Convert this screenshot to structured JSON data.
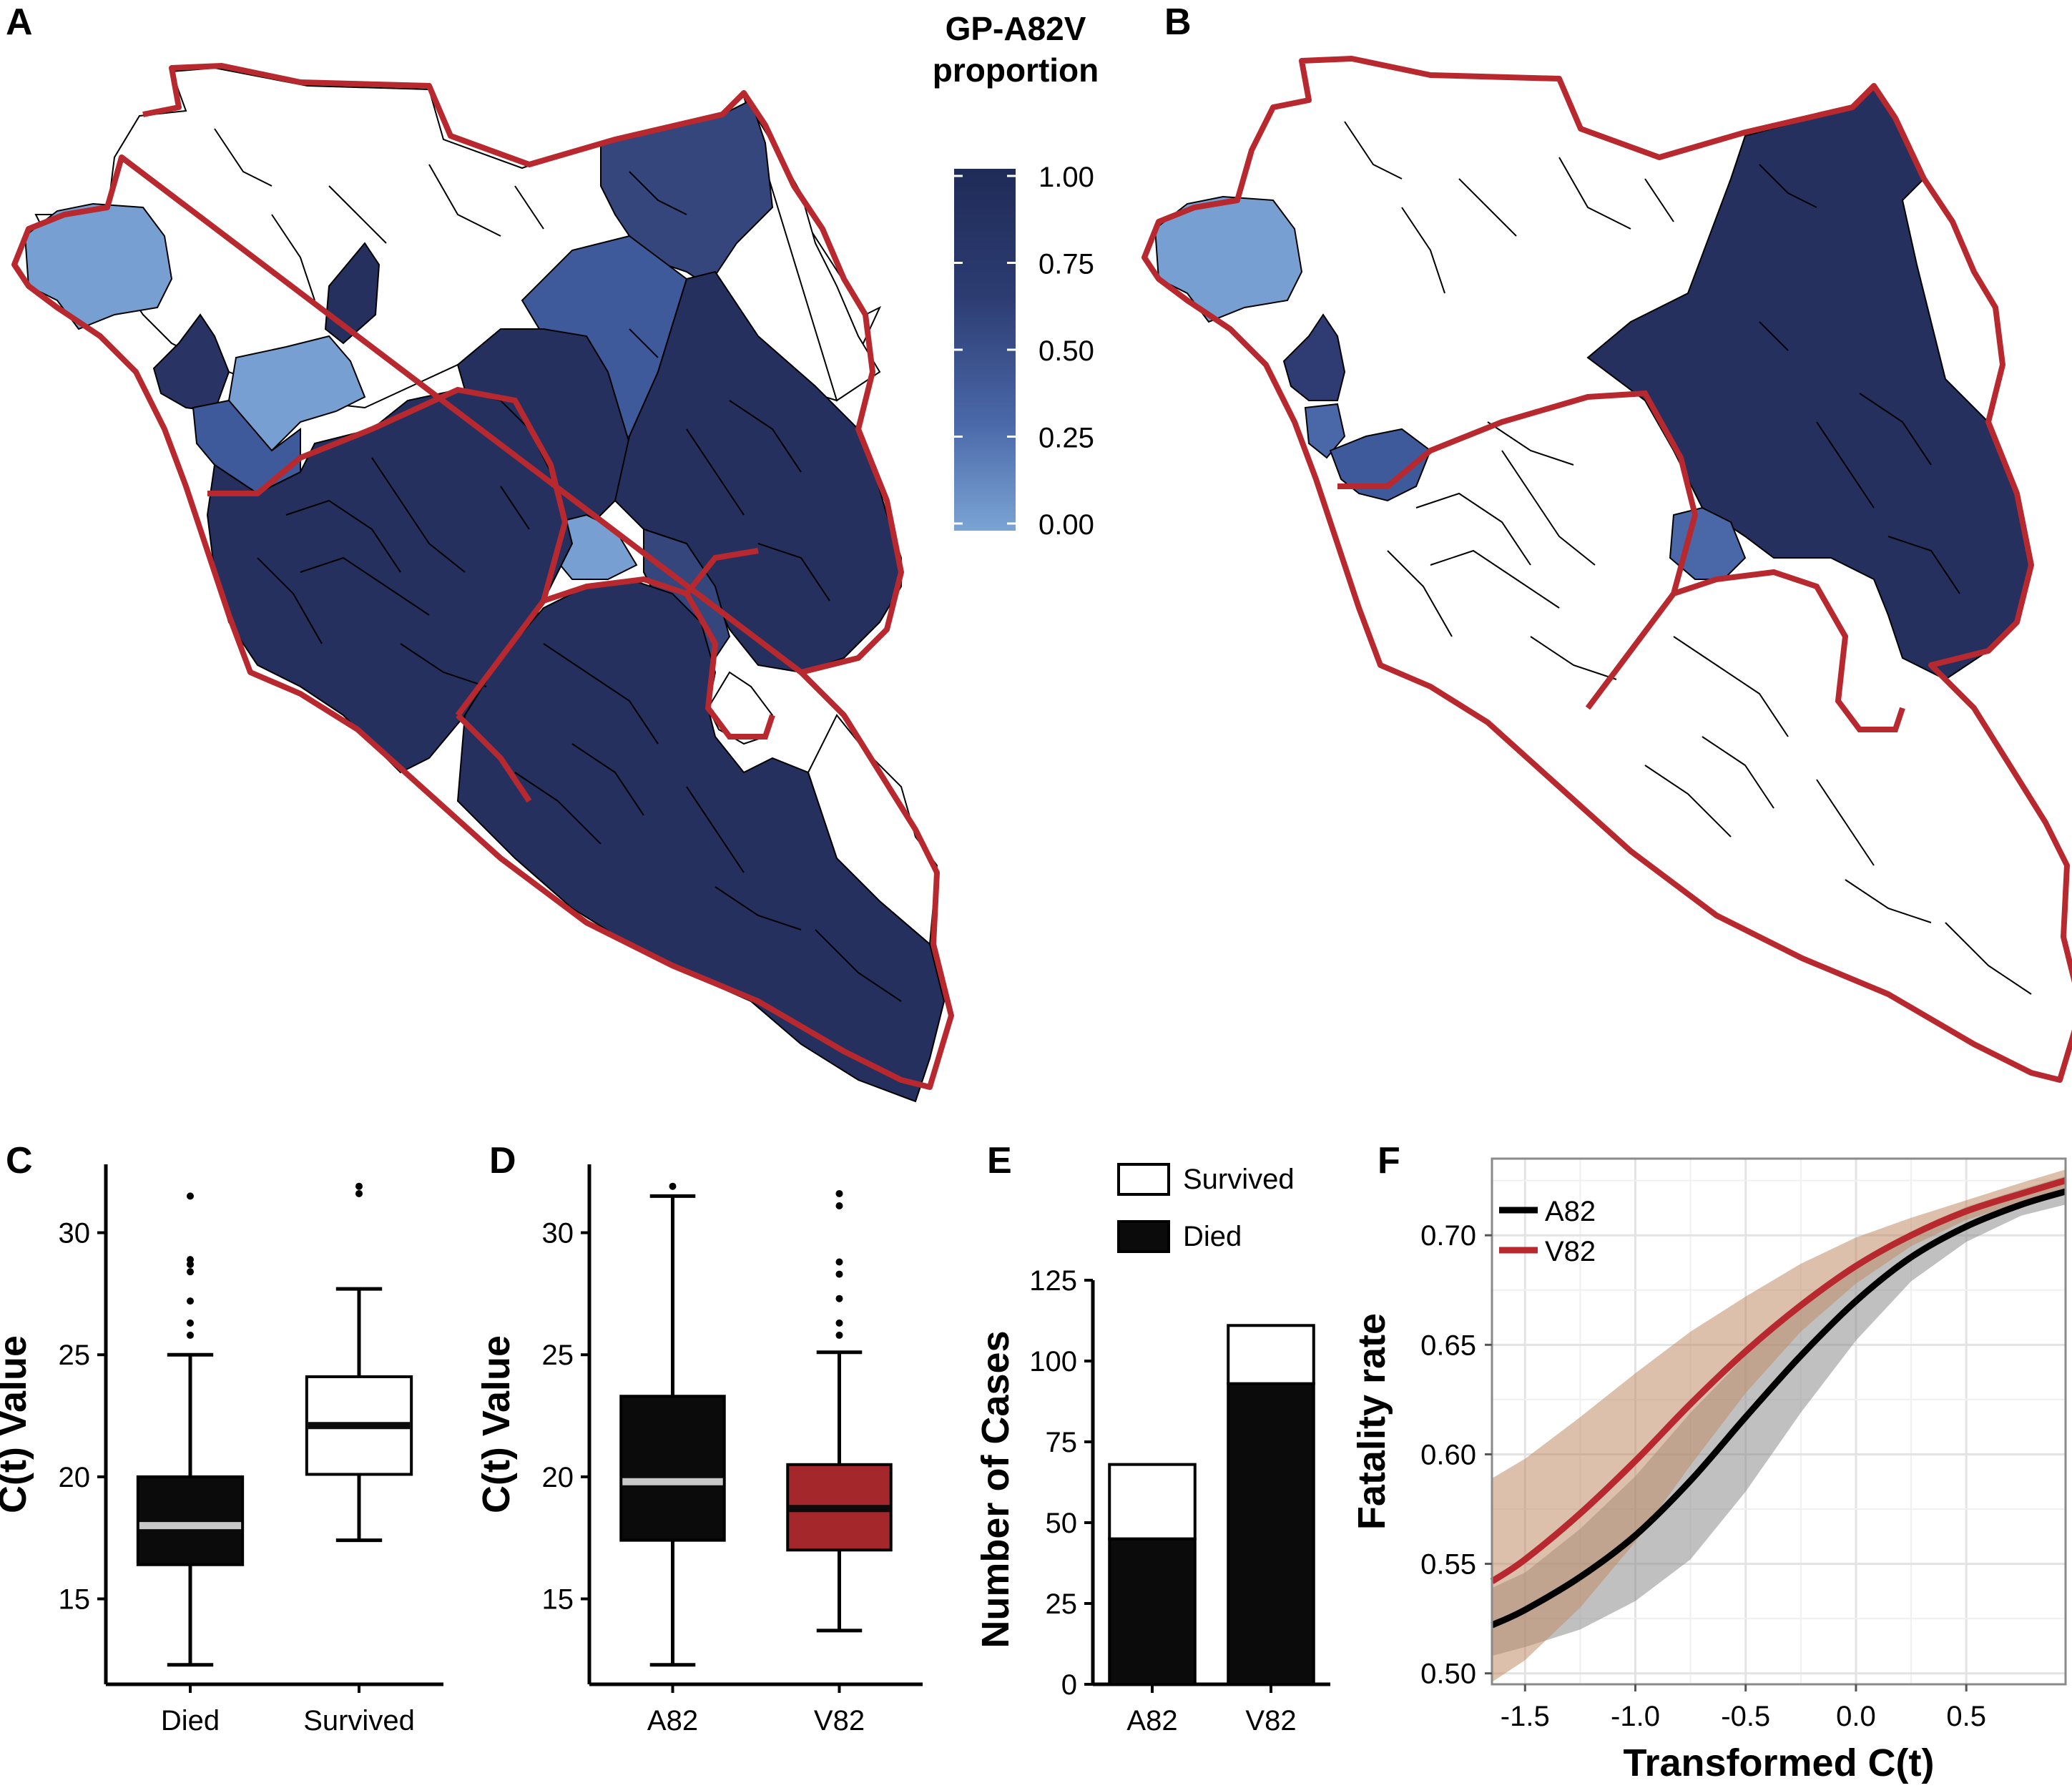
{
  "panels": {
    "a": {
      "label": "A"
    },
    "b": {
      "label": "B"
    },
    "c": {
      "label": "C"
    },
    "d": {
      "label": "D"
    },
    "e": {
      "label": "E"
    },
    "f": {
      "label": "F"
    }
  },
  "map_legend": {
    "title_line1": "GP-A82V",
    "title_line2": "proportion",
    "ticks": [
      "1.00",
      "0.75",
      "0.50",
      "0.25",
      "0.00"
    ],
    "color_low": "#7aa4d4",
    "color_high": "#1f2b57"
  },
  "colors": {
    "border_red": "#b7292e",
    "dark_navy": "#26305f",
    "light_blue": "#789fd2",
    "red_box": "#a3272b",
    "black": "#0b0b0b",
    "median_grey": "#c8c8c8"
  },
  "chart_data": [
    {
      "type": "box",
      "panel": "C",
      "ylabel": "C(t) Value",
      "ylim": [
        11.5,
        32.8
      ],
      "yticks": [
        "15",
        "20",
        "25",
        "30"
      ],
      "categories": [
        "Died",
        "Survived"
      ],
      "boxes": [
        {
          "name": "Died",
          "fill": "#0b0b0b",
          "median_color": "#c8c8c8",
          "whisker_low": 12.3,
          "q1": 16.4,
          "median": 18.0,
          "q3": 20.0,
          "whisker_high": 25.0,
          "outliers": [
            25.8,
            26.3,
            27.2,
            28.4,
            28.7,
            28.9,
            31.5
          ]
        },
        {
          "name": "Survived",
          "fill": "#ffffff",
          "median_color": "#0b0b0b",
          "whisker_low": 17.4,
          "q1": 20.1,
          "median": 22.1,
          "q3": 24.1,
          "whisker_high": 27.7,
          "outliers": [
            31.6,
            31.9
          ]
        }
      ]
    },
    {
      "type": "box",
      "panel": "D",
      "ylabel": "C(t) Value",
      "ylim": [
        11.5,
        32.8
      ],
      "yticks": [
        "15",
        "20",
        "25",
        "30"
      ],
      "categories": [
        "A82",
        "V82"
      ],
      "boxes": [
        {
          "name": "A82",
          "fill": "#0b0b0b",
          "median_color": "#c8c8c8",
          "whisker_low": 12.3,
          "q1": 17.4,
          "median": 19.8,
          "q3": 23.3,
          "whisker_high": 31.5,
          "outliers": [
            31.9
          ]
        },
        {
          "name": "V82",
          "fill": "#a3272b",
          "median_color": "#0b0b0b",
          "whisker_low": 13.7,
          "q1": 17.0,
          "median": 18.7,
          "q3": 20.5,
          "whisker_high": 25.1,
          "outliers": [
            25.8,
            26.3,
            27.3,
            28.3,
            28.8,
            31.1,
            31.6
          ]
        }
      ]
    },
    {
      "type": "bar",
      "stacked": true,
      "panel": "E",
      "ylabel": "Number of Cases",
      "ylim": [
        0,
        125
      ],
      "yticks": [
        "0",
        "25",
        "50",
        "75",
        "100",
        "125"
      ],
      "categories": [
        "A82",
        "V82"
      ],
      "series": [
        {
          "name": "Died",
          "color": "#0b0b0b",
          "values": [
            45,
            93
          ]
        },
        {
          "name": "Survived",
          "color": "#ffffff",
          "values": [
            23,
            18
          ]
        }
      ],
      "legend": "top"
    },
    {
      "type": "line",
      "panel": "F",
      "xlabel": "Transformed C(t)",
      "ylabel": "Fatality rate",
      "xlim": [
        -1.65,
        0.95
      ],
      "ylim": [
        0.495,
        0.735
      ],
      "xticks": [
        "-1.5",
        "-1.0",
        "-0.5",
        "0.0",
        "0.5"
      ],
      "yticks": [
        "0.50",
        "0.55",
        "0.60",
        "0.65",
        "0.70"
      ],
      "grid": true,
      "legend": "top-left",
      "series": [
        {
          "name": "A82",
          "color": "#000000",
          "band_color": "#8c8c8c",
          "x": [
            -1.65,
            -1.5,
            -1.25,
            -1.0,
            -0.75,
            -0.5,
            -0.25,
            0.0,
            0.25,
            0.5,
            0.75,
            0.95
          ],
          "y": [
            0.522,
            0.529,
            0.544,
            0.563,
            0.588,
            0.617,
            0.645,
            0.67,
            0.69,
            0.704,
            0.714,
            0.72
          ],
          "lower": [
            0.508,
            0.512,
            0.52,
            0.533,
            0.552,
            0.583,
            0.619,
            0.652,
            0.679,
            0.697,
            0.709,
            0.714
          ],
          "upper": [
            0.539,
            0.546,
            0.566,
            0.59,
            0.619,
            0.645,
            0.667,
            0.685,
            0.701,
            0.713,
            0.721,
            0.727
          ]
        },
        {
          "name": "V82",
          "color": "#b7292e",
          "band_color": "#c08c66",
          "x": [
            -1.65,
            -1.5,
            -1.25,
            -1.0,
            -0.75,
            -0.5,
            -0.25,
            0.0,
            0.25,
            0.5,
            0.75,
            0.95
          ],
          "y": [
            0.542,
            0.552,
            0.573,
            0.597,
            0.623,
            0.647,
            0.668,
            0.686,
            0.7,
            0.711,
            0.719,
            0.725
          ],
          "lower": [
            0.496,
            0.506,
            0.53,
            0.56,
            0.595,
            0.628,
            0.656,
            0.678,
            0.695,
            0.707,
            0.715,
            0.719
          ],
          "upper": [
            0.589,
            0.598,
            0.617,
            0.637,
            0.656,
            0.672,
            0.687,
            0.699,
            0.708,
            0.716,
            0.724,
            0.73
          ]
        }
      ]
    }
  ]
}
